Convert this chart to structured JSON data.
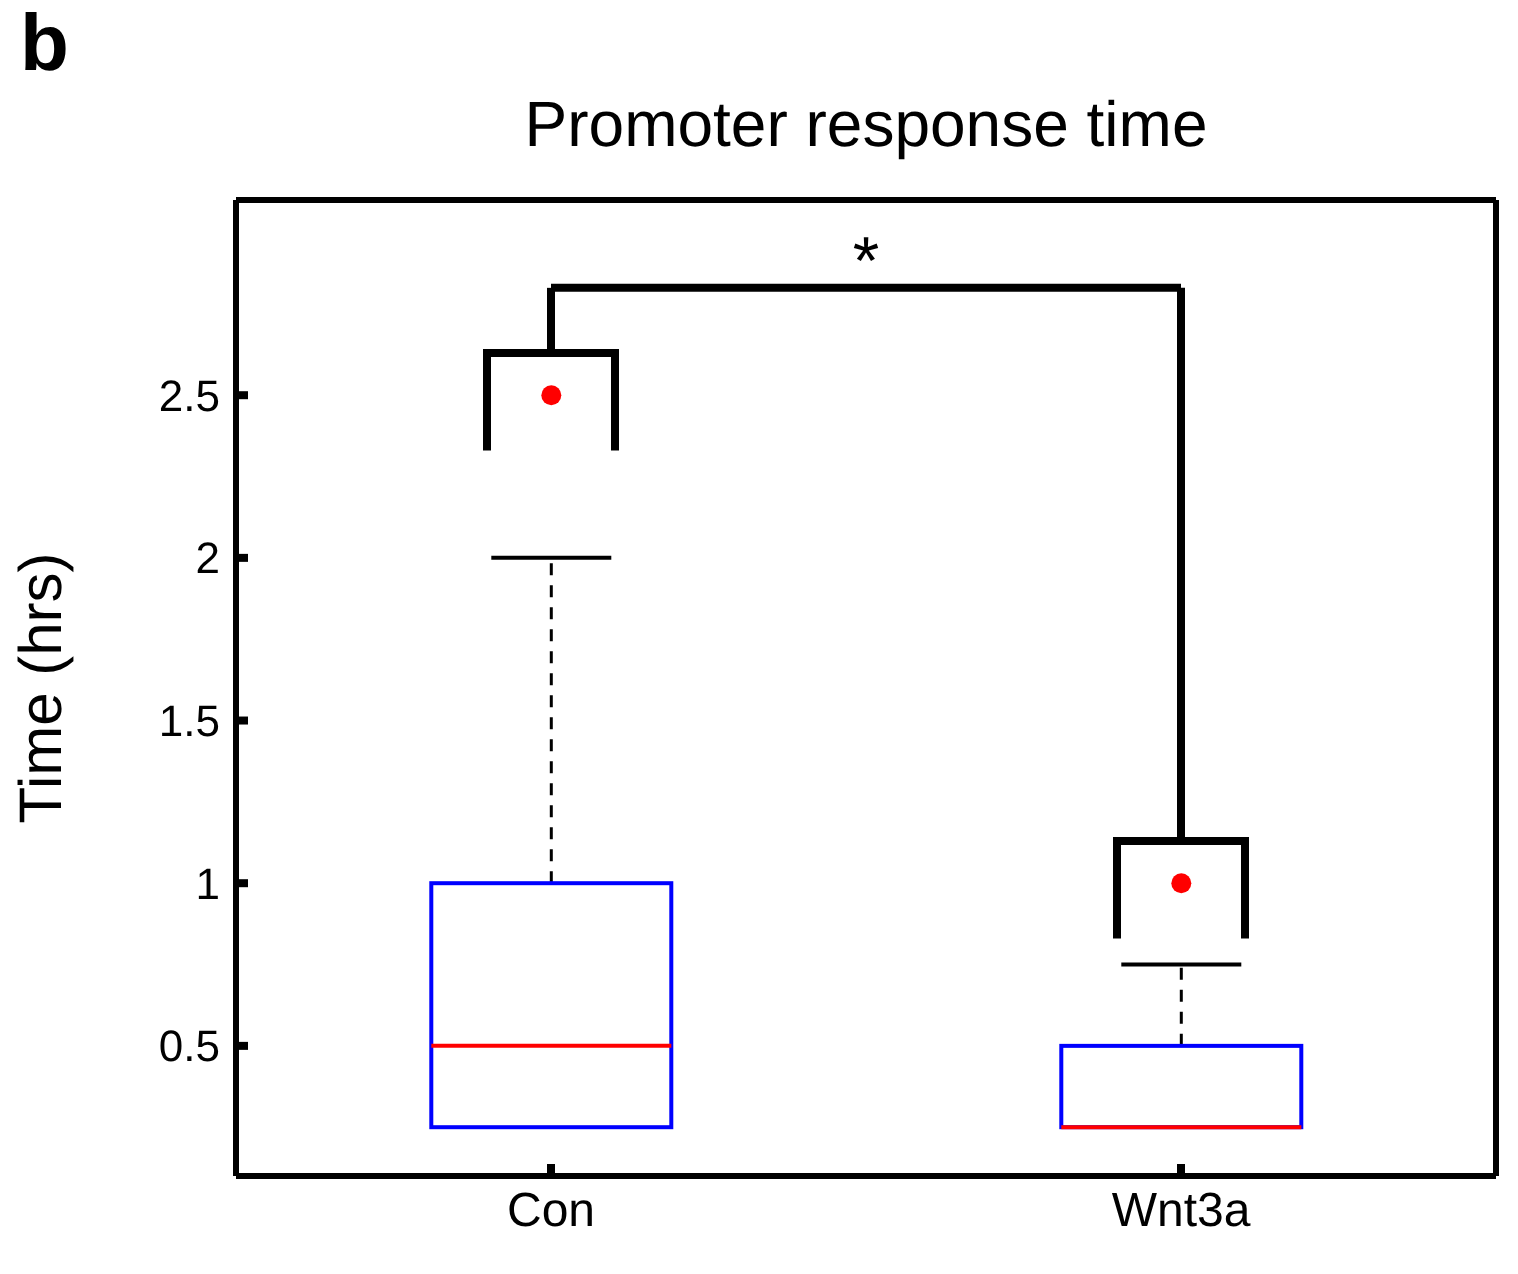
{
  "chart_data": {
    "type": "box",
    "title": "Promoter response time",
    "ylabel": "Time (hrs)",
    "categories": [
      "Con",
      "Wnt3a"
    ],
    "series": [
      {
        "color": "#0000ff",
        "boxes": [
          {
            "low": 0.25,
            "q1": 0.25,
            "median": 0.5,
            "q3": 1,
            "high": 2,
            "outliers": [
              2.5
            ]
          },
          {
            "low": 0.25,
            "q1": 0.25,
            "median": 0.25,
            "q3": 0.5,
            "high": 0.75,
            "outliers": [
              1
            ]
          }
        ]
      }
    ],
    "ylim": [
      0.1,
      3.1
    ],
    "yticks": [
      0.5,
      1,
      1.5,
      2,
      2.5
    ],
    "annotations": [
      "b",
      "*"
    ]
  }
}
